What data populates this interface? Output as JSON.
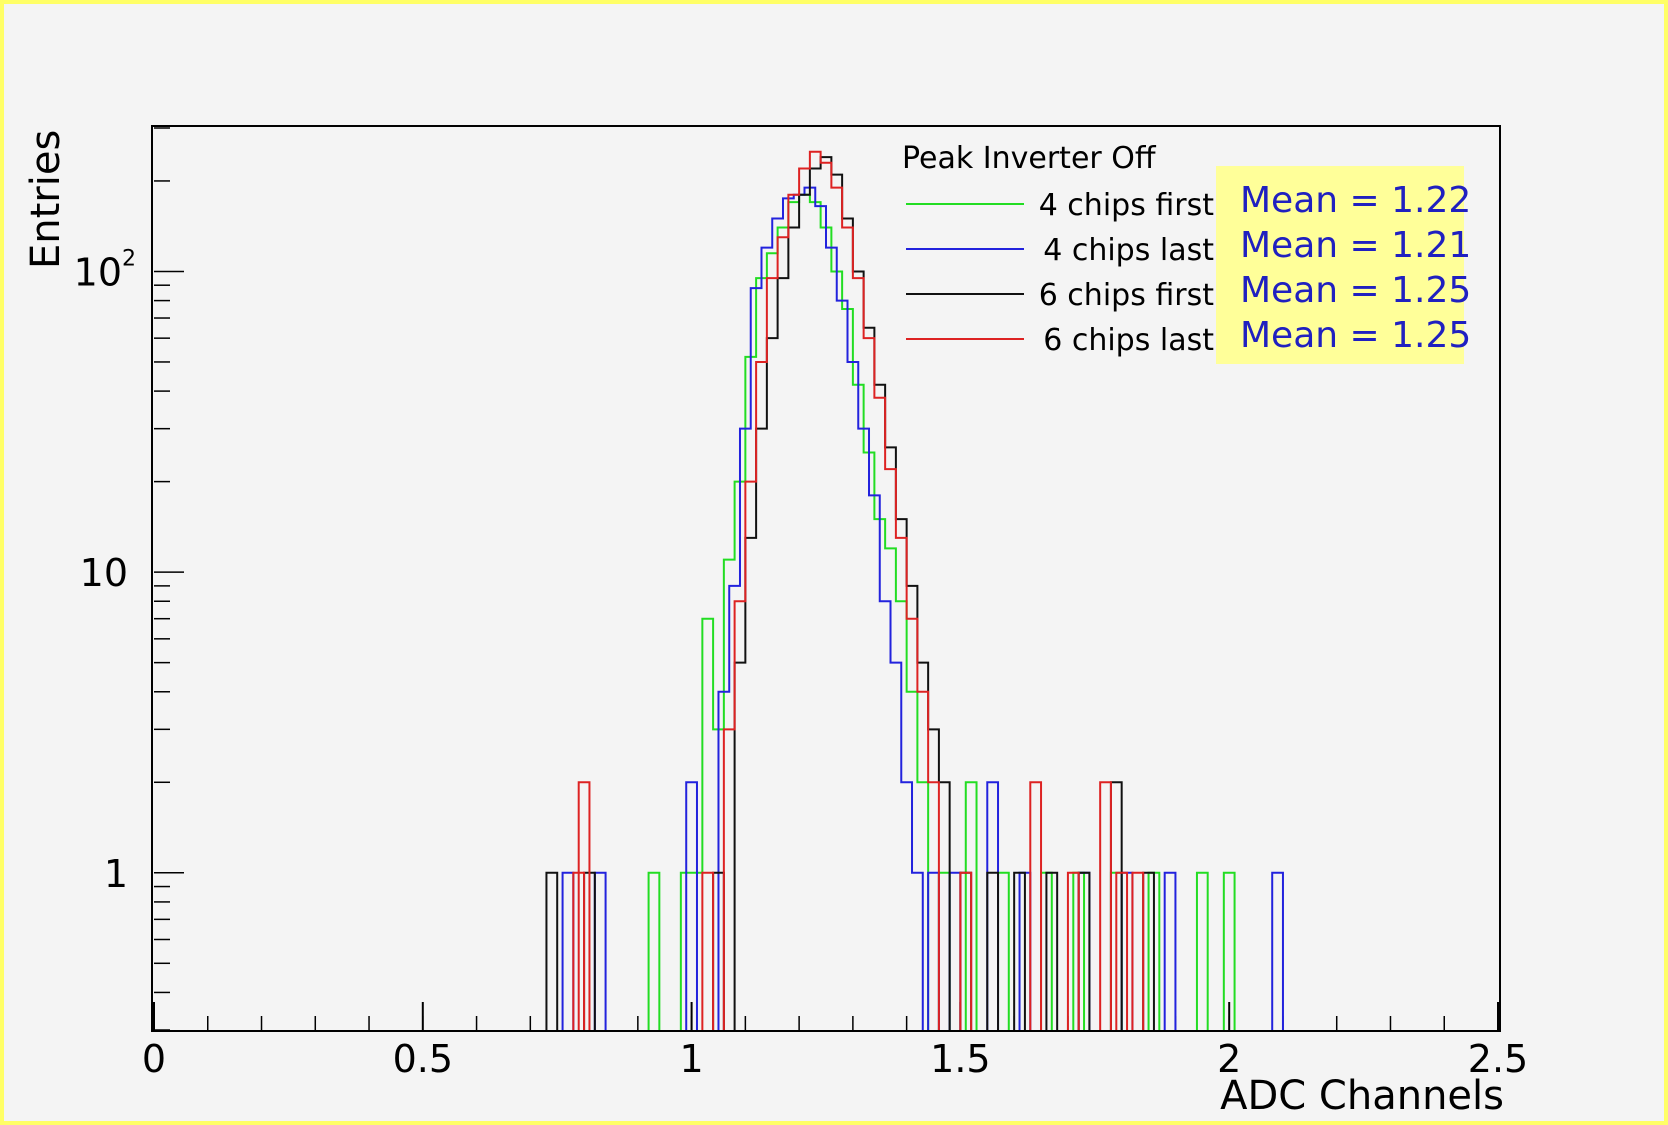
{
  "chart_data": {
    "type": "line",
    "histogram": true,
    "xlabel": "ADC Channels",
    "ylabel": "Entries",
    "xlim": [
      0,
      2.5
    ],
    "ylim": [
      0.3,
      300
    ],
    "y_scale": "log",
    "xticks": [
      "0",
      "0.5",
      "1",
      "1.5",
      "2",
      "2.5"
    ],
    "yticks": [
      {
        "value": 1,
        "label": "1"
      },
      {
        "value": 10,
        "label": "10"
      },
      {
        "value": 100,
        "label": "10",
        "sup": "2"
      }
    ],
    "legend": {
      "title": "Peak Inverter Off",
      "position": "top-right"
    },
    "stats_box": {
      "background": "#ffff99",
      "text_color": "#2020c0"
    },
    "series": [
      {
        "name": "4 chips first",
        "color": "#22dd22",
        "mean_label": "Mean = 1.22",
        "points": [
          [
            0.93,
            1
          ],
          [
            0.99,
            1
          ],
          [
            1.01,
            1
          ],
          [
            1.03,
            7
          ],
          [
            1.05,
            3
          ],
          [
            1.07,
            11
          ],
          [
            1.09,
            20
          ],
          [
            1.11,
            52
          ],
          [
            1.13,
            95
          ],
          [
            1.15,
            115
          ],
          [
            1.17,
            140
          ],
          [
            1.19,
            170
          ],
          [
            1.21,
            180
          ],
          [
            1.23,
            170
          ],
          [
            1.25,
            140
          ],
          [
            1.27,
            100
          ],
          [
            1.29,
            75
          ],
          [
            1.31,
            42
          ],
          [
            1.33,
            25
          ],
          [
            1.35,
            15
          ],
          [
            1.37,
            12
          ],
          [
            1.39,
            8
          ],
          [
            1.41,
            4
          ],
          [
            1.43,
            2
          ],
          [
            1.47,
            1
          ],
          [
            1.52,
            2
          ],
          [
            1.58,
            1
          ],
          [
            1.66,
            1
          ],
          [
            1.72,
            1
          ],
          [
            1.79,
            1
          ],
          [
            1.86,
            1
          ],
          [
            1.95,
            1
          ],
          [
            2.0,
            1
          ]
        ]
      },
      {
        "name": "4 chips last",
        "color": "#2222dd",
        "mean_label": "Mean = 1.21",
        "points": [
          [
            0.77,
            1
          ],
          [
            0.83,
            1
          ],
          [
            1.0,
            2
          ],
          [
            1.06,
            4
          ],
          [
            1.08,
            9
          ],
          [
            1.1,
            30
          ],
          [
            1.12,
            88
          ],
          [
            1.14,
            120
          ],
          [
            1.16,
            150
          ],
          [
            1.18,
            175
          ],
          [
            1.2,
            180
          ],
          [
            1.22,
            190
          ],
          [
            1.24,
            165
          ],
          [
            1.26,
            120
          ],
          [
            1.28,
            80
          ],
          [
            1.3,
            50
          ],
          [
            1.32,
            30
          ],
          [
            1.34,
            18
          ],
          [
            1.36,
            8
          ],
          [
            1.38,
            5
          ],
          [
            1.4,
            2
          ],
          [
            1.42,
            1
          ],
          [
            1.45,
            1
          ],
          [
            1.49,
            1
          ],
          [
            1.56,
            2
          ],
          [
            1.62,
            1
          ],
          [
            1.73,
            1
          ],
          [
            1.81,
            1
          ],
          [
            1.89,
            1
          ],
          [
            2.09,
            1
          ]
        ]
      },
      {
        "name": "6 chips first",
        "color": "#111111",
        "mean_label": "Mean = 1.25",
        "points": [
          [
            0.74,
            1
          ],
          [
            0.81,
            1
          ],
          [
            1.05,
            1
          ],
          [
            1.09,
            5
          ],
          [
            1.11,
            13
          ],
          [
            1.13,
            30
          ],
          [
            1.15,
            60
          ],
          [
            1.17,
            95
          ],
          [
            1.19,
            140
          ],
          [
            1.21,
            180
          ],
          [
            1.23,
            220
          ],
          [
            1.25,
            240
          ],
          [
            1.27,
            210
          ],
          [
            1.29,
            150
          ],
          [
            1.31,
            100
          ],
          [
            1.33,
            65
          ],
          [
            1.35,
            42
          ],
          [
            1.37,
            26
          ],
          [
            1.39,
            15
          ],
          [
            1.41,
            9
          ],
          [
            1.43,
            5
          ],
          [
            1.45,
            3
          ],
          [
            1.47,
            2
          ],
          [
            1.51,
            1
          ],
          [
            1.56,
            1
          ],
          [
            1.61,
            1
          ],
          [
            1.67,
            1
          ],
          [
            1.73,
            1
          ],
          [
            1.79,
            2
          ],
          [
            1.85,
            1
          ]
        ]
      },
      {
        "name": "6 chips last",
        "color": "#dd2222",
        "mean_label": "Mean = 1.25",
        "points": [
          [
            0.8,
            2
          ],
          [
            0.79,
            1
          ],
          [
            1.03,
            1
          ],
          [
            1.07,
            3
          ],
          [
            1.09,
            8
          ],
          [
            1.11,
            20
          ],
          [
            1.13,
            50
          ],
          [
            1.15,
            95
          ],
          [
            1.17,
            130
          ],
          [
            1.19,
            180
          ],
          [
            1.21,
            220
          ],
          [
            1.23,
            250
          ],
          [
            1.25,
            230
          ],
          [
            1.27,
            190
          ],
          [
            1.29,
            140
          ],
          [
            1.31,
            95
          ],
          [
            1.33,
            60
          ],
          [
            1.35,
            38
          ],
          [
            1.37,
            22
          ],
          [
            1.39,
            13
          ],
          [
            1.41,
            7
          ],
          [
            1.43,
            4
          ],
          [
            1.45,
            2
          ],
          [
            1.51,
            1
          ],
          [
            1.64,
            2
          ],
          [
            1.71,
            1
          ],
          [
            1.77,
            2
          ],
          [
            1.8,
            1
          ],
          [
            1.83,
            1
          ]
        ]
      }
    ]
  }
}
